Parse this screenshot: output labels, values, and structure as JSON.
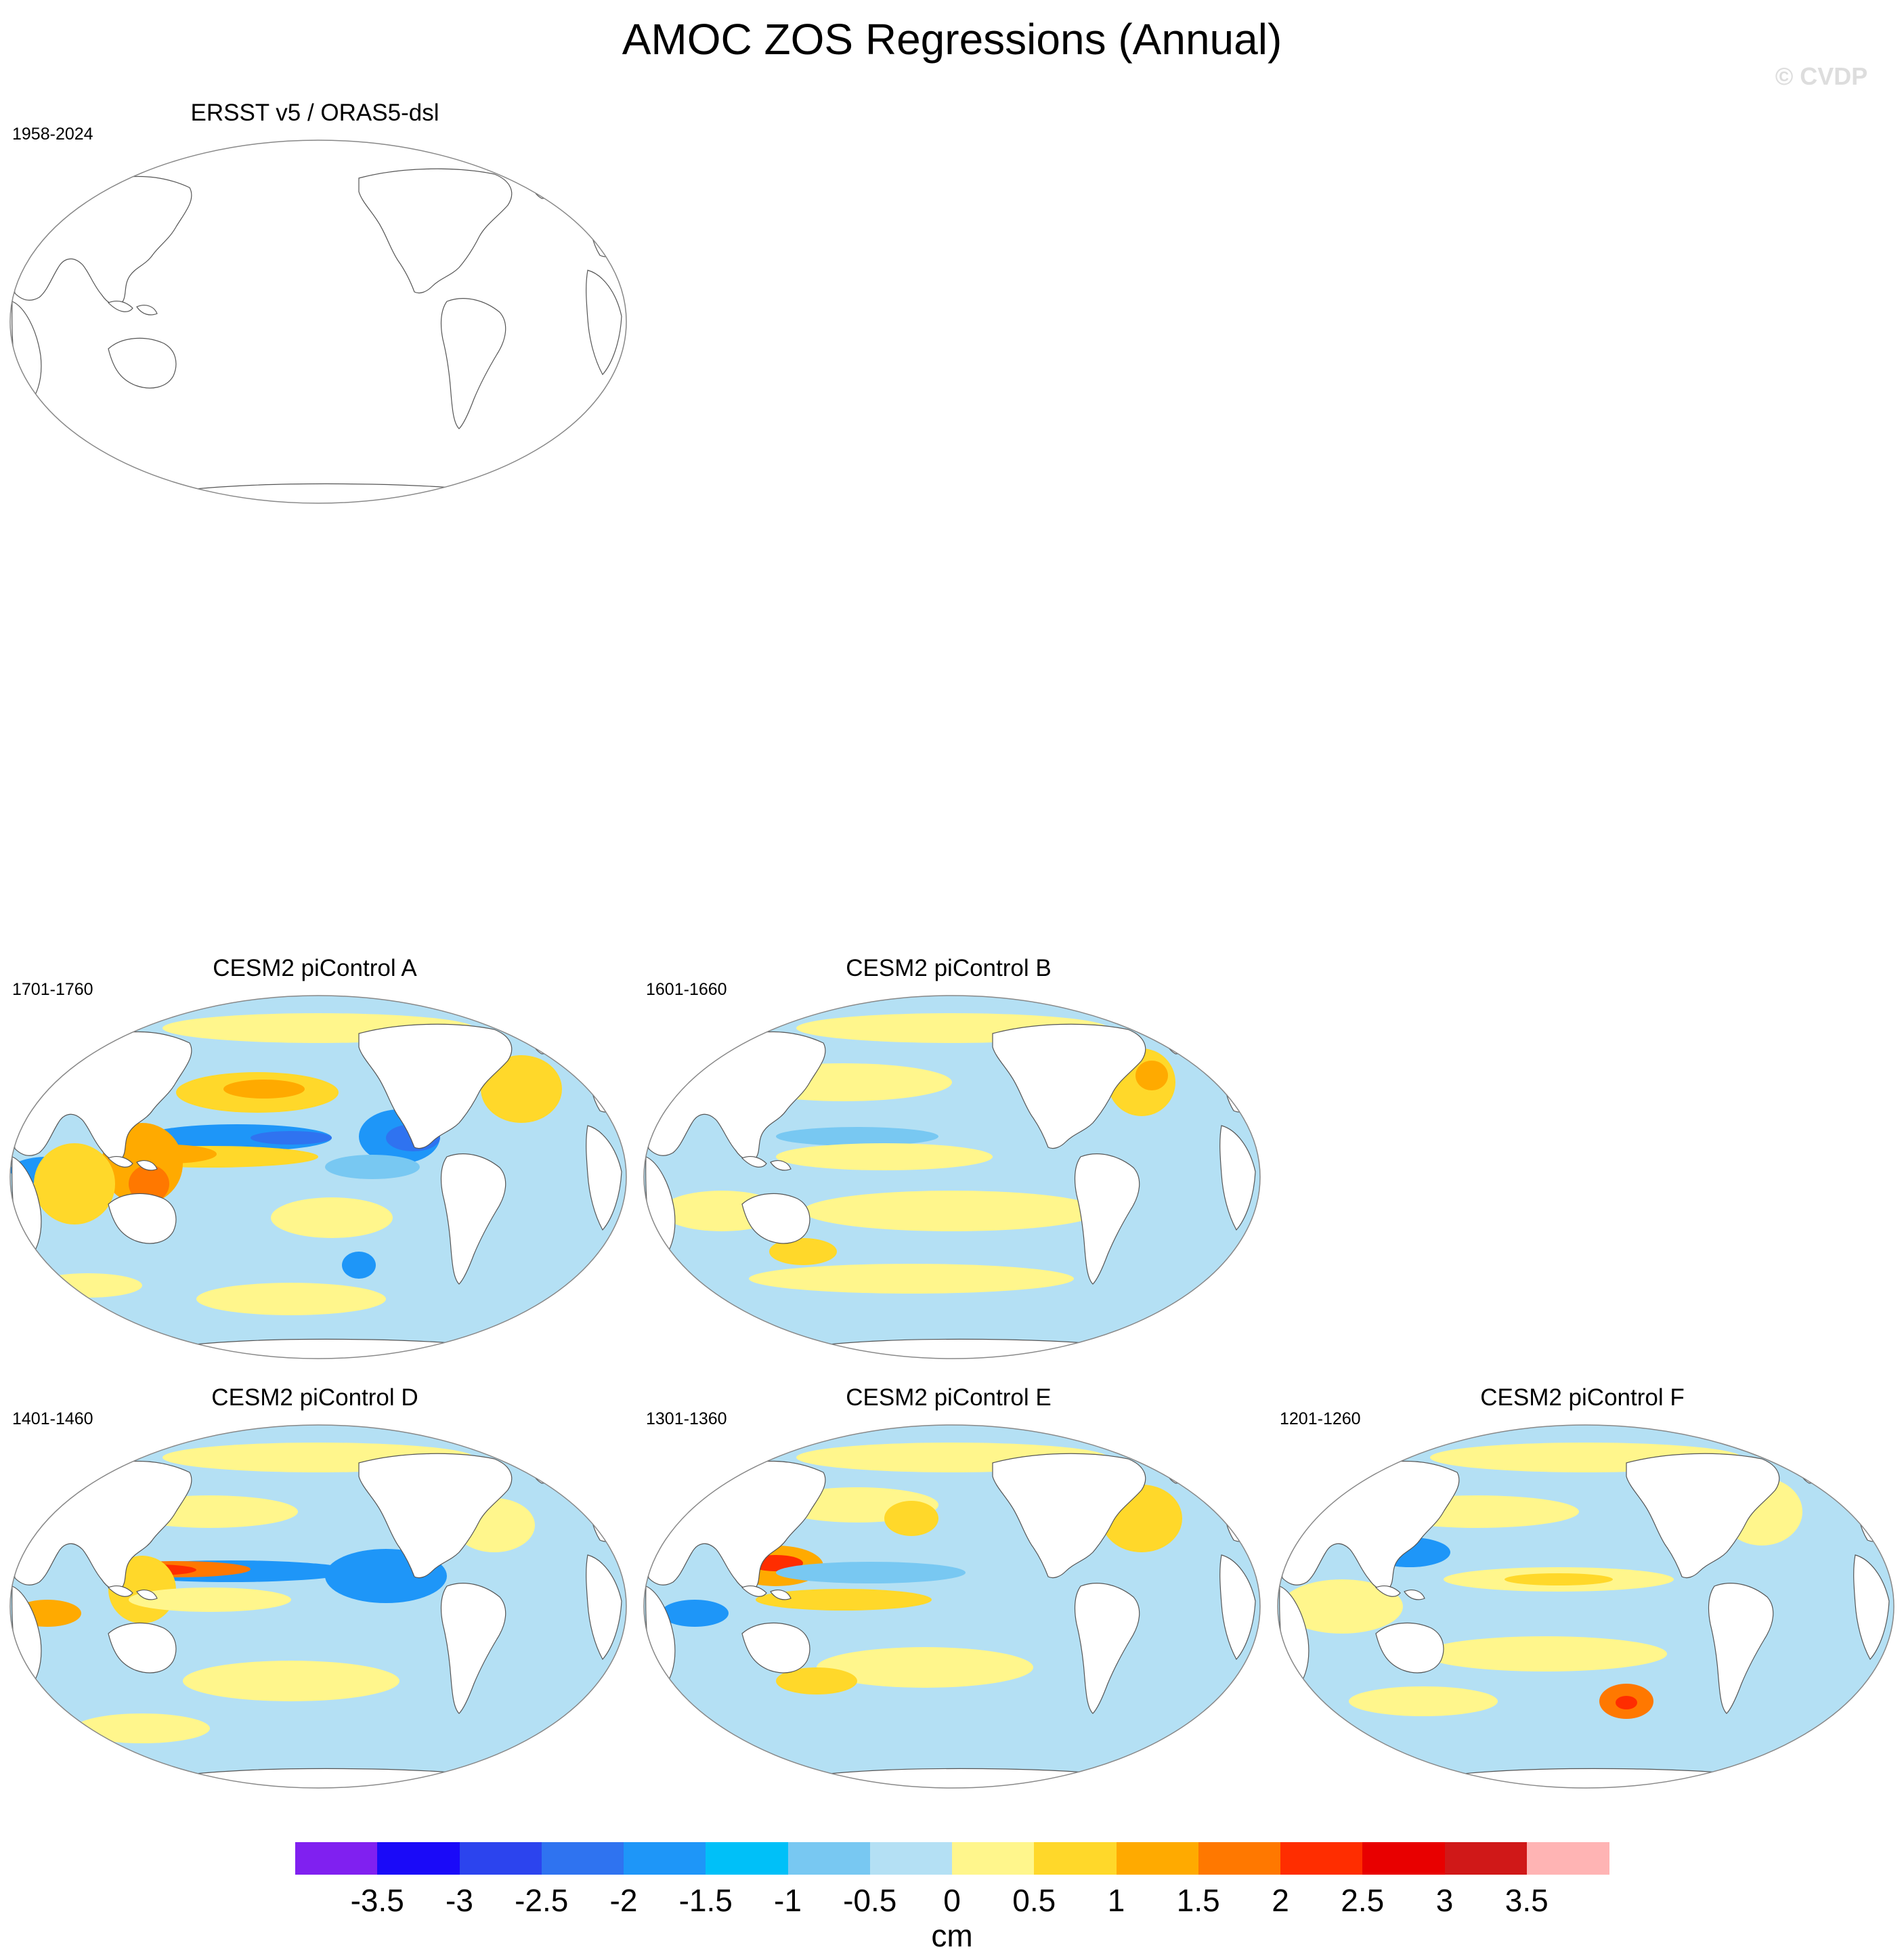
{
  "title": "AMOC ZOS Regressions (Annual)",
  "watermark": "© CVDP",
  "panels": [
    {
      "id": "obs",
      "title": "ERSST v5 / ORAS5-dsl",
      "period": "1958-2024",
      "has_data": false
    },
    {
      "id": "A",
      "title": "CESM2 piControl A",
      "period": "1701-1760",
      "has_data": true
    },
    {
      "id": "B",
      "title": "CESM2 piControl B",
      "period": "1601-1660",
      "has_data": true
    },
    {
      "id": "D",
      "title": "CESM2 piControl D",
      "period": "1401-1460",
      "has_data": true
    },
    {
      "id": "E",
      "title": "CESM2 piControl E",
      "period": "1301-1360",
      "has_data": true
    },
    {
      "id": "F",
      "title": "CESM2 piControl F",
      "period": "1201-1260",
      "has_data": true
    }
  ],
  "colorbar": {
    "unit": "cm",
    "labels": [
      "-3.5",
      "-3",
      "-2.5",
      "-2",
      "-1.5",
      "-1",
      "-0.5",
      "0",
      "0.5",
      "1",
      "1.5",
      "2",
      "2.5",
      "3",
      "3.5"
    ],
    "colors": [
      "#8020f0",
      "#1a0af8",
      "#2c44ee",
      "#2f73f0",
      "#1e96f8",
      "#00c0f8",
      "#78c8f2",
      "#b4e0f4",
      "#fff68c",
      "#ffd82a",
      "#ffaa00",
      "#ff7800",
      "#ff2d00",
      "#e80000",
      "#d01818",
      "#ffb4b4"
    ]
  },
  "map_colors": {
    "land": "#ffffff",
    "coastline": "#555555",
    "ocean_base": "#b4e0f4",
    "positive_weak": "#fff68c",
    "positive_mid": "#ffd82a",
    "positive_strong": "#ffaa00",
    "positive_max": "#ff7800",
    "peak": "#ff2d00",
    "negative_mid": "#78c8f2",
    "negative_strong": "#1e96f8",
    "negative_max": "#2f73f0"
  }
}
